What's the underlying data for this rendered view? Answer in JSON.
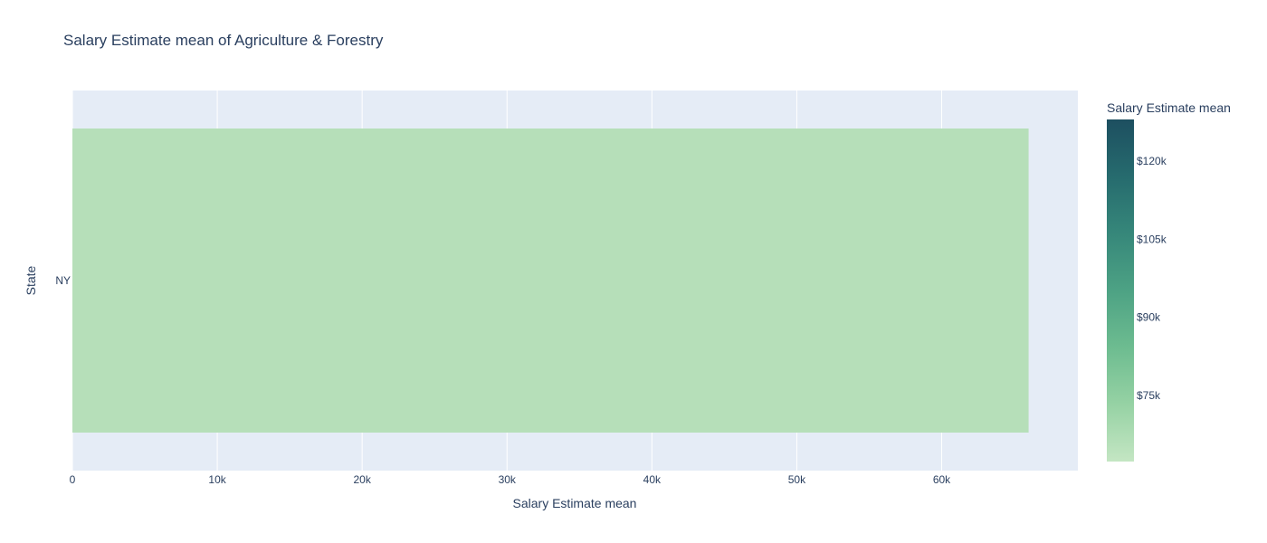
{
  "chart_data": {
    "type": "bar",
    "orientation": "horizontal",
    "title": "Salary Estimate mean of Agriculture & Forestry",
    "xlabel": "Salary Estimate mean",
    "ylabel": "State",
    "categories": [
      "NY"
    ],
    "values": [
      66000
    ],
    "xlim": [
      0,
      69400
    ],
    "x_ticks": [
      {
        "value": 0,
        "label": "0"
      },
      {
        "value": 10000,
        "label": "10k"
      },
      {
        "value": 20000,
        "label": "20k"
      },
      {
        "value": 30000,
        "label": "30k"
      },
      {
        "value": 40000,
        "label": "40k"
      },
      {
        "value": 50000,
        "label": "50k"
      },
      {
        "value": 60000,
        "label": "60k"
      }
    ],
    "grid": true,
    "colorbar": {
      "title": "Salary Estimate mean",
      "range": [
        62300,
        128000
      ],
      "ticks": [
        {
          "value": 75000,
          "label": "$75k"
        },
        {
          "value": 90000,
          "label": "$90k"
        },
        {
          "value": 105000,
          "label": "$105k"
        },
        {
          "value": 120000,
          "label": "$120k"
        }
      ],
      "colorscale": [
        "#c4e6c3",
        "#96d2a4",
        "#6dbc90",
        "#4da284",
        "#36877a",
        "#266b6e",
        "#1d4f60"
      ]
    },
    "colors": {
      "plot_background": "#e5ecf6",
      "gridline": "#ffffff",
      "text": "#2a3f5f",
      "bar": "#b6dfb9"
    }
  }
}
